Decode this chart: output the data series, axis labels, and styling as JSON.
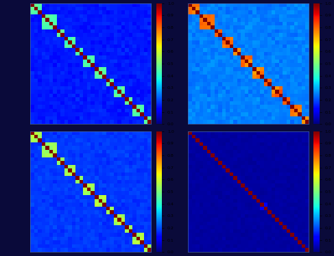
{
  "n": 32,
  "colormap": "jet",
  "vmin": 0,
  "vmax": 1,
  "figsize": [
    4.87,
    3.74
  ],
  "dpi": 100,
  "colorbar_ticks": [
    0,
    0.1,
    0.2,
    0.3,
    0.4,
    0.5,
    0.6,
    0.7,
    0.8,
    0.9,
    1.0
  ],
  "group_assignments": [
    0,
    0,
    0,
    1,
    1,
    1,
    1,
    2,
    2,
    3,
    3,
    3,
    4,
    4,
    5,
    5,
    5,
    6,
    6,
    6,
    7,
    7,
    8,
    8,
    8,
    9,
    9,
    10,
    10,
    10,
    11,
    11
  ],
  "control_base": 0.15,
  "control_group_corr": 0.45,
  "bic_base": 0.25,
  "bic_group_corr": 0.78,
  "ap5_base": 0.18,
  "ap5_group_corr": 0.55,
  "cnqx_base": 0.03,
  "cnqx_group_corr": 0.04,
  "cnqx_spot_row": 19,
  "cnqx_spot_col": 20,
  "cnqx_spot_val": 0.12,
  "fig_facecolor": "#0a0a3a",
  "ax_facecolor": "#000066"
}
